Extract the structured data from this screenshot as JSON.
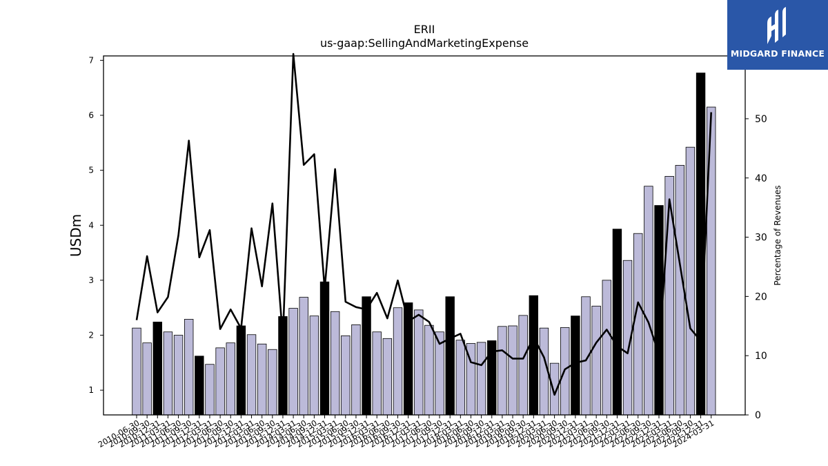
{
  "brand": {
    "name": "MIDGARD FINANCE",
    "color": "#2a57a8"
  },
  "chart_data": {
    "type": "bar",
    "title": "ERII",
    "subtitle": "us-gaap:SellingAndMarketingExpense",
    "ylabel": "USDm",
    "y2label": "Percentage of Revenues",
    "ylim": [
      0.55,
      7.08
    ],
    "y2lim": [
      0,
      60.6
    ],
    "yticks": [
      1,
      2,
      3,
      4,
      5,
      6,
      7
    ],
    "y2ticks": [
      0,
      10,
      20,
      30,
      40,
      50
    ],
    "bar_fill_quarter": "#bcbad9",
    "bar_fill_annual": "#000000",
    "line_color": "#000000",
    "categories": [
      "2010-06-30",
      "2010-09-30",
      "2010-12-31",
      "2011-03-31",
      "2011-06-30",
      "2011-09-30",
      "2011-12-31",
      "2012-03-31",
      "2012-06-30",
      "2012-09-30",
      "2012-12-31",
      "2013-03-31",
      "2013-06-30",
      "2013-09-30",
      "2013-12-31",
      "2014-03-31",
      "2014-06-30",
      "2014-09-30",
      "2014-12-31",
      "2015-03-31",
      "2015-06-30",
      "2015-09-30",
      "2015-12-31",
      "2016-03-31",
      "2016-06-30",
      "2016-09-30",
      "2016-12-31",
      "2017-03-31",
      "2017-06-30",
      "2017-09-30",
      "2017-12-31",
      "2018-03-31",
      "2018-06-30",
      "2018-09-30",
      "2018-12-31",
      "2019-03-31",
      "2019-06-30",
      "2019-09-30",
      "2019-12-31",
      "2020-03-31",
      "2020-06-30",
      "2020-09-30",
      "2020-12-31",
      "2021-03-31",
      "2021-06-30",
      "2021-09-30",
      "2021-12-31",
      "2022-03-31",
      "2022-06-30",
      "2022-09-30",
      "2022-12-31",
      "2023-03-31",
      "2023-06-30",
      "2023-09-30",
      "2023-12-31",
      "2024-03-31"
    ],
    "series": [
      {
        "values": [
          2.13,
          1.86,
          2.24,
          2.06,
          2.0,
          2.29,
          1.62,
          1.47,
          1.77,
          1.86,
          2.17,
          2.01,
          1.84,
          1.74,
          2.34,
          2.49,
          2.69,
          2.35,
          2.97,
          2.43,
          1.99,
          2.19,
          2.7,
          2.06,
          1.94,
          2.5,
          2.59,
          2.46,
          2.18,
          2.06,
          2.7,
          1.91,
          1.85,
          1.87,
          1.9,
          2.16,
          2.17,
          2.36,
          2.72,
          2.13,
          1.49,
          2.14,
          2.35,
          2.7,
          2.53,
          3.0,
          3.93,
          3.36,
          3.85,
          4.71,
          4.36,
          4.89,
          5.09,
          5.42,
          6.77,
          6.15
        ],
        "annual": [
          false,
          false,
          true,
          false,
          false,
          false,
          true,
          false,
          false,
          false,
          true,
          false,
          false,
          false,
          true,
          false,
          false,
          false,
          true,
          false,
          false,
          false,
          true,
          false,
          false,
          false,
          true,
          false,
          false,
          false,
          true,
          false,
          false,
          false,
          true,
          false,
          false,
          false,
          true,
          false,
          false,
          false,
          true,
          false,
          false,
          false,
          true,
          false,
          false,
          false,
          true,
          false,
          false,
          false,
          true,
          false
        ]
      },
      {
        "axis": "right",
        "values": [
          16.0,
          26.8,
          17.3,
          19.9,
          30.3,
          46.3,
          26.6,
          31.2,
          14.5,
          17.8,
          14.6,
          31.5,
          21.7,
          35.7,
          13.0,
          61.0,
          42.2,
          44.0,
          21.3,
          41.5,
          19.1,
          18.2,
          17.8,
          20.6,
          16.3,
          22.7,
          15.8,
          16.9,
          15.7,
          12.0,
          12.9,
          13.7,
          8.9,
          8.4,
          10.7,
          10.9,
          9.5,
          9.5,
          13.1,
          9.7,
          3.4,
          7.7,
          8.8,
          9.2,
          12.2,
          14.4,
          11.6,
          10.4,
          19.0,
          15.6,
          10.2,
          36.4,
          25.5,
          14.6,
          12.5,
          51.1
        ]
      }
    ]
  }
}
